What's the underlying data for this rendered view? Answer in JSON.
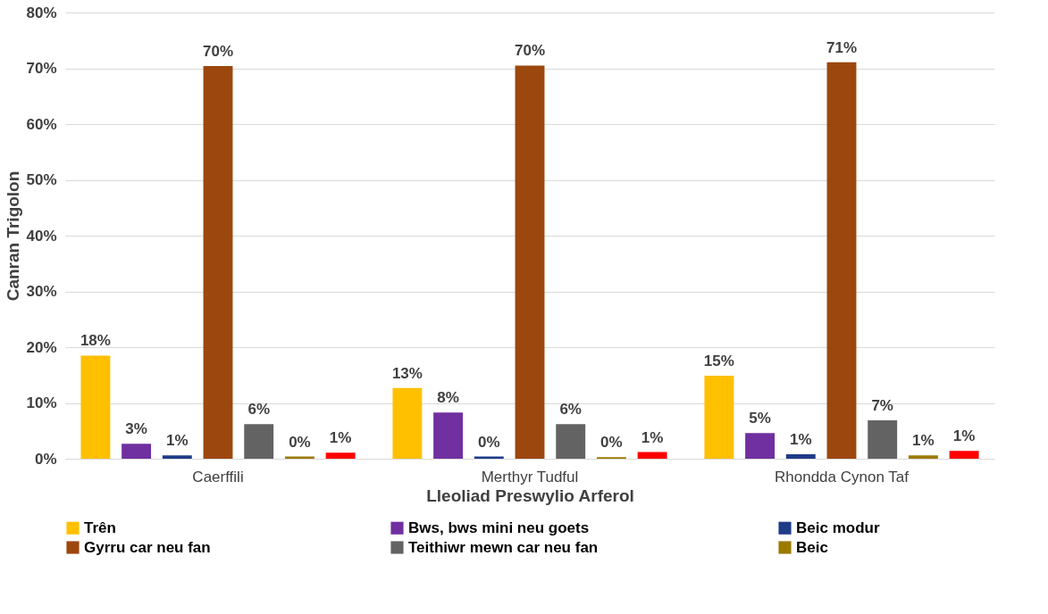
{
  "chart_data": {
    "type": "bar",
    "xlabel": "Lleoliad Preswylio Arferol",
    "ylabel": "Canran Trigolon",
    "categories": [
      "Caerffili",
      "Merthyr Tudful",
      "Rhondda Cynon Taf"
    ],
    "ylim": [
      0,
      80
    ],
    "yticks": [
      {
        "value": 0,
        "label": "0%"
      },
      {
        "value": 10,
        "label": "10%"
      },
      {
        "value": 20,
        "label": "20%"
      },
      {
        "value": 30,
        "label": "30%"
      },
      {
        "value": 40,
        "label": "40%"
      },
      {
        "value": 50,
        "label": "50%"
      },
      {
        "value": 60,
        "label": "60%"
      },
      {
        "value": 70,
        "label": "70%"
      },
      {
        "value": 80,
        "label": "80%"
      }
    ],
    "grid": "y",
    "legend": "bottom",
    "series": [
      {
        "name": "Trên",
        "color": "#ffc000",
        "values": [
          18.5,
          12.7,
          14.9
        ],
        "value_labels": [
          "18%",
          "13%",
          "15%"
        ]
      },
      {
        "name": "Bws, bws mini neu goets",
        "color": "#7030a0",
        "values": [
          2.7,
          8.3,
          4.6
        ],
        "value_labels": [
          "3%",
          "8%",
          "5%"
        ]
      },
      {
        "name": "Beic modur",
        "color": "#1f3c88",
        "values": [
          0.6,
          0.4,
          0.8
        ],
        "value_labels": [
          "1%",
          "0%",
          "1%"
        ]
      },
      {
        "name": "Gyrru car neu fan",
        "color": "#9c470d",
        "values": [
          70.4,
          70.5,
          71.1
        ],
        "value_labels": [
          "70%",
          "70%",
          "71%"
        ]
      },
      {
        "name": "Teithiwr mewn car neu fan",
        "color": "#636363",
        "values": [
          6.2,
          6.2,
          6.9
        ],
        "value_labels": [
          "6%",
          "6%",
          "7%"
        ]
      },
      {
        "name": "Beic",
        "color": "#9c7a00",
        "values": [
          0.4,
          0.3,
          0.6
        ],
        "value_labels": [
          "0%",
          "0%",
          "1%"
        ]
      },
      {
        "color": "#ff0000",
        "values": [
          1.1,
          1.2,
          1.4
        ],
        "value_labels": [
          "1%",
          "1%",
          "1%"
        ]
      }
    ]
  }
}
